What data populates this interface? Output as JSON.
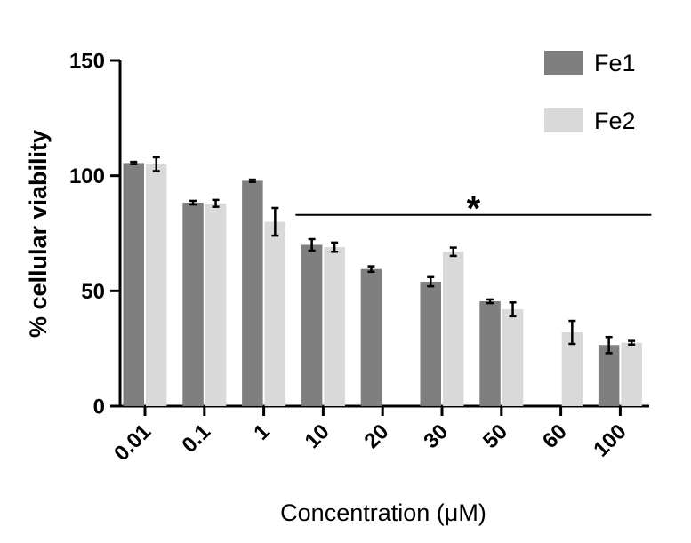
{
  "chart_data": {
    "type": "bar",
    "title": "",
    "xlabel": "Concentration (μM)",
    "ylabel": "% cellular viability",
    "ylim": [
      0,
      150
    ],
    "yticks": [
      0,
      50,
      100,
      150
    ],
    "categories": [
      "0.01",
      "0.1",
      "1",
      "10",
      "20",
      "30",
      "50",
      "60",
      "100"
    ],
    "series": [
      {
        "name": "Fe1",
        "color": "#7f7f7f",
        "values": [
          105.5,
          88.3,
          97.8,
          70.0,
          59.5,
          54.0,
          45.5,
          null,
          26.5
        ],
        "errors": [
          0.5,
          0.8,
          0.5,
          2.5,
          1.2,
          2.0,
          0.8,
          null,
          3.5
        ]
      },
      {
        "name": "Fe2",
        "color": "#d9d9d9",
        "values": [
          105.0,
          88.0,
          80.0,
          69.0,
          null,
          67.0,
          42.0,
          32.0,
          27.5
        ],
        "errors": [
          3.0,
          1.5,
          6.0,
          2.0,
          null,
          1.8,
          3.0,
          5.0,
          0.8
        ]
      }
    ],
    "significance": {
      "label": "*",
      "from_category": "10",
      "to_category": "100",
      "y": 83
    },
    "legend_position": "top-right"
  }
}
